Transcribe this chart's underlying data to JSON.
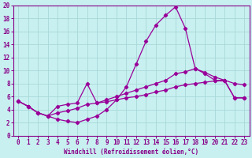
{
  "xlabel": "Windchill (Refroidissement éolien,°C)",
  "bg_color": "#c8f0f0",
  "grid_color": "#a8d8d8",
  "line_color": "#990099",
  "spine_color": "#880088",
  "xlim": [
    -0.5,
    23.5
  ],
  "ylim": [
    0,
    20
  ],
  "xticks": [
    0,
    1,
    2,
    3,
    4,
    5,
    6,
    7,
    8,
    9,
    10,
    11,
    12,
    13,
    14,
    15,
    16,
    17,
    18,
    19,
    20,
    21,
    22,
    23
  ],
  "yticks": [
    0,
    2,
    4,
    6,
    8,
    10,
    12,
    14,
    16,
    18,
    20
  ],
  "line1_x": [
    0,
    1,
    2,
    3,
    4,
    5,
    6,
    7,
    8,
    9,
    10,
    11,
    12,
    13,
    14,
    15,
    16,
    17,
    18,
    19,
    20,
    21,
    22,
    23
  ],
  "line1_y": [
    5.3,
    4.5,
    3.5,
    3.0,
    2.5,
    2.2,
    2.0,
    2.5,
    3.0,
    4.0,
    5.5,
    7.5,
    11.0,
    14.5,
    17.0,
    18.5,
    19.8,
    16.5,
    10.3,
    9.5,
    8.5,
    8.5,
    8.0,
    7.8
  ],
  "line2_x": [
    0,
    1,
    2,
    3,
    4,
    5,
    6,
    7,
    8,
    9,
    10,
    11,
    12,
    13,
    14,
    15,
    16,
    17,
    18,
    19,
    20,
    21,
    22,
    23
  ],
  "line2_y": [
    5.3,
    4.5,
    3.5,
    3.0,
    4.5,
    4.8,
    5.0,
    8.0,
    5.0,
    5.5,
    6.0,
    6.5,
    7.0,
    7.5,
    8.0,
    8.5,
    9.5,
    9.8,
    10.3,
    9.7,
    9.0,
    8.5,
    5.8,
    5.8
  ],
  "line3_x": [
    0,
    1,
    2,
    3,
    4,
    5,
    6,
    7,
    8,
    9,
    10,
    11,
    12,
    13,
    14,
    15,
    16,
    17,
    18,
    19,
    20,
    21,
    22,
    23
  ],
  "line3_y": [
    5.3,
    4.5,
    3.5,
    3.0,
    3.5,
    3.8,
    4.2,
    4.8,
    5.0,
    5.2,
    5.5,
    5.8,
    6.0,
    6.3,
    6.7,
    7.0,
    7.5,
    7.8,
    8.0,
    8.2,
    8.4,
    8.4,
    5.8,
    5.8
  ]
}
